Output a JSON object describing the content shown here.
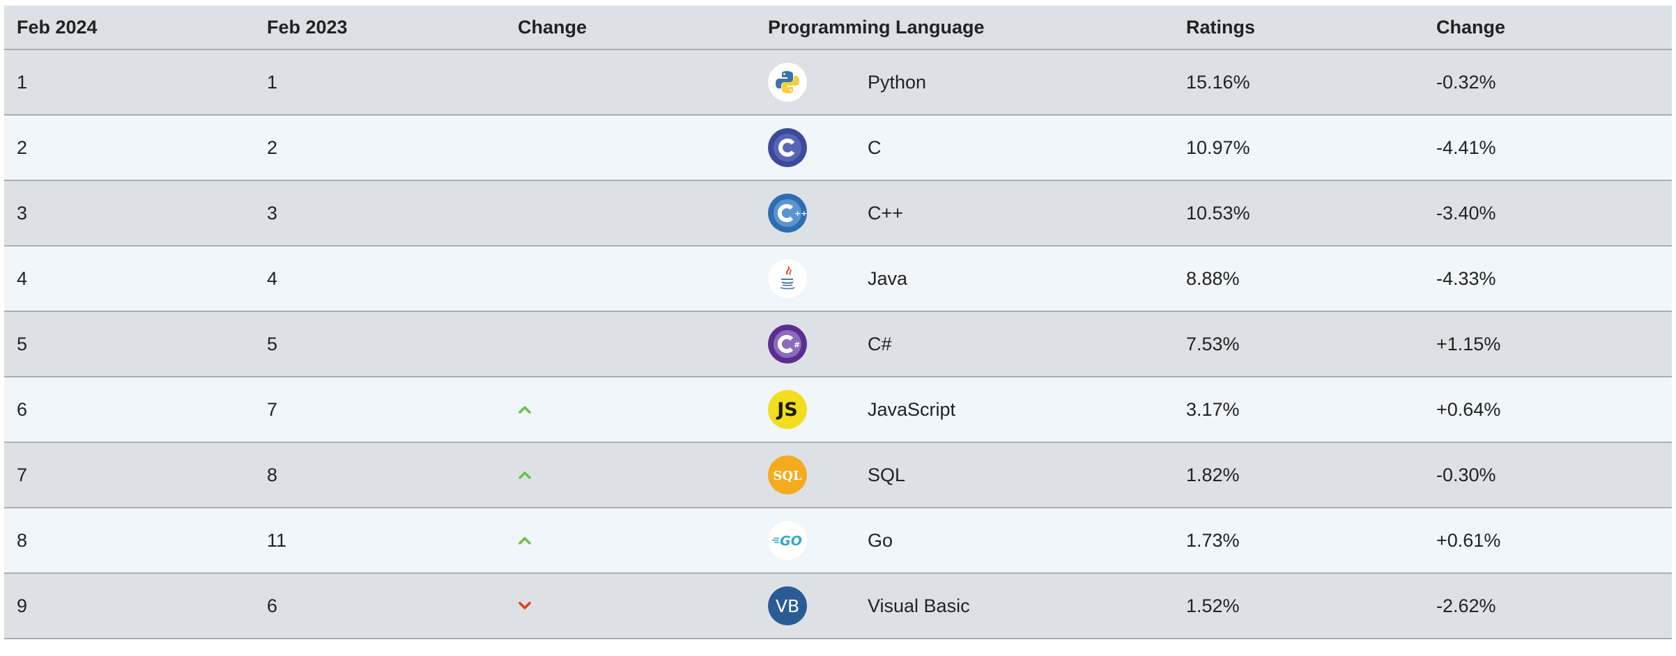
{
  "table": {
    "headers": [
      "Feb 2024",
      "Feb 2023",
      "Change",
      "Programming Language",
      "Ratings",
      "Change"
    ],
    "rows": [
      {
        "feb2024": "1",
        "feb2023": "1",
        "change_dir": "none",
        "logo": "python-logo-icon",
        "language": "Python",
        "rating": "15.16%",
        "change": "-0.32%"
      },
      {
        "feb2024": "2",
        "feb2023": "2",
        "change_dir": "none",
        "logo": "c-logo-icon",
        "language": "C",
        "rating": "10.97%",
        "change": "-4.41%"
      },
      {
        "feb2024": "3",
        "feb2023": "3",
        "change_dir": "none",
        "logo": "cpp-logo-icon",
        "language": "C++",
        "rating": "10.53%",
        "change": "-3.40%"
      },
      {
        "feb2024": "4",
        "feb2023": "4",
        "change_dir": "none",
        "logo": "java-logo-icon",
        "language": "Java",
        "rating": "8.88%",
        "change": "-4.33%"
      },
      {
        "feb2024": "5",
        "feb2023": "5",
        "change_dir": "none",
        "logo": "csharp-logo-icon",
        "language": "C#",
        "rating": "7.53%",
        "change": "+1.15%"
      },
      {
        "feb2024": "6",
        "feb2023": "7",
        "change_dir": "up",
        "logo": "javascript-logo-icon",
        "language": "JavaScript",
        "rating": "3.17%",
        "change": "+0.64%"
      },
      {
        "feb2024": "7",
        "feb2023": "8",
        "change_dir": "up",
        "logo": "sql-logo-icon",
        "language": "SQL",
        "rating": "1.82%",
        "change": "-0.30%"
      },
      {
        "feb2024": "8",
        "feb2023": "11",
        "change_dir": "up",
        "logo": "go-logo-icon",
        "language": "Go",
        "rating": "1.73%",
        "change": "+0.61%"
      },
      {
        "feb2024": "9",
        "feb2023": "6",
        "change_dir": "down",
        "logo": "visual-basic-logo-icon",
        "language": "Visual Basic",
        "rating": "1.52%",
        "change": "-2.62%"
      }
    ]
  },
  "logo_text": {
    "javascript": "JS",
    "sql": "SQL",
    "go": "GO",
    "visual_basic": "VB"
  },
  "colors": {
    "arrow_up": "#6cbf4f",
    "arrow_down": "#e0401c",
    "header_bg": "#dde1e6",
    "row_alt_bg": "#f1f6fa",
    "border": "#a9adb1"
  }
}
